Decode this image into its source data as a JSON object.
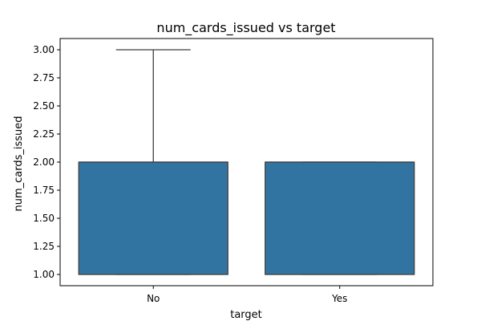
{
  "chart_data": {
    "type": "box",
    "title": "num_cards_issued vs target",
    "xlabel": "target",
    "ylabel": "num_cards_issued",
    "categories": [
      "No",
      "Yes"
    ],
    "boxes": [
      {
        "category": "No",
        "min": 1.0,
        "q1": 1.0,
        "median": 2.0,
        "q3": 2.0,
        "max": 3.0
      },
      {
        "category": "Yes",
        "min": 1.0,
        "q1": 1.0,
        "median": 2.0,
        "q3": 2.0,
        "max": 2.0
      }
    ],
    "ylim": [
      0.9,
      3.1
    ],
    "yticks": [
      "1.00",
      "1.25",
      "1.50",
      "1.75",
      "2.00",
      "2.25",
      "2.50",
      "2.75",
      "3.00"
    ],
    "grid": false,
    "colors": {
      "box_fill": "#3274a1",
      "box_edge": "#3f3f3f",
      "axis": "#000000"
    }
  }
}
